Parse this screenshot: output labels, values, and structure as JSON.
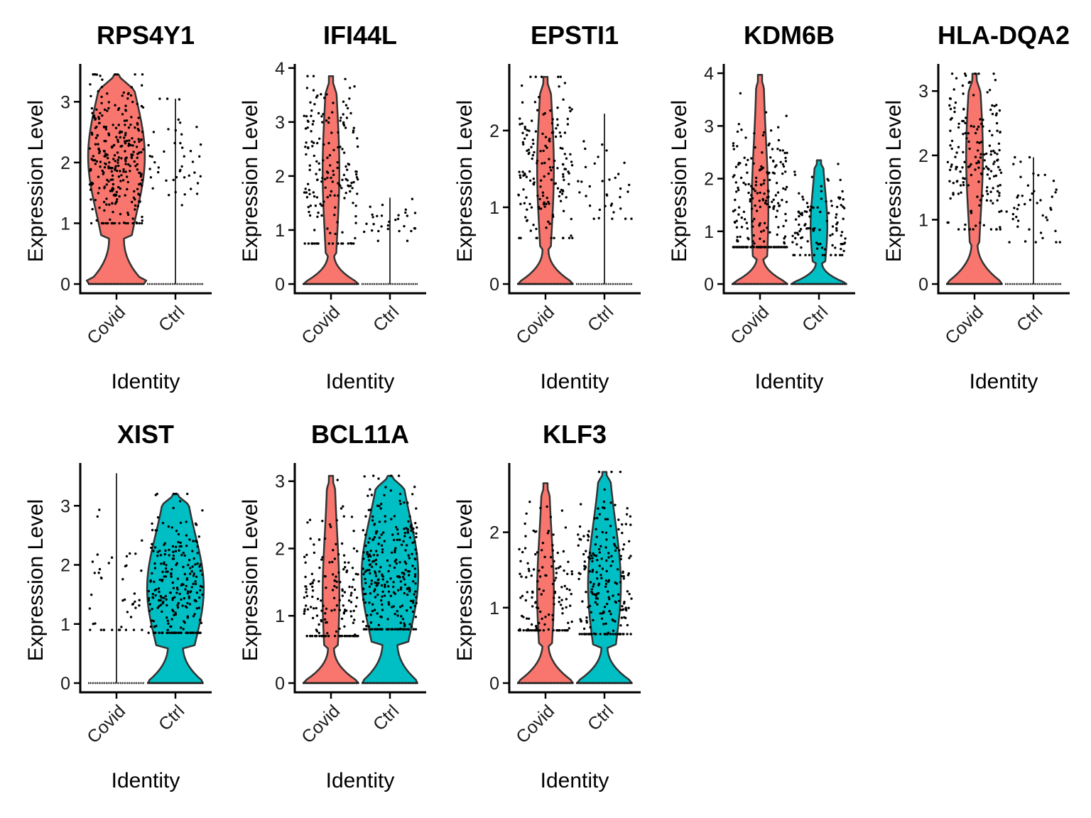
{
  "chart_data": [
    {
      "type": "violin",
      "title": "RPS4Y1",
      "xlabel": "Identity",
      "ylabel": "Expression Level",
      "categories": [
        "Covid",
        "Ctrl"
      ],
      "yticks": [
        0,
        1,
        2,
        3
      ],
      "ylim": [
        -0.15,
        3.6
      ],
      "series": [
        {
          "name": "Covid",
          "color": "#F8766D",
          "max": 3.45,
          "zero_fraction": 0.3,
          "mode": 2.1,
          "nonzero_range": [
            1.0,
            3.45
          ],
          "shape": "wide-upper",
          "points": 300
        },
        {
          "name": "Ctrl",
          "color": "#00BFC4",
          "max": 3.05,
          "zero_fraction": 0.92,
          "mode": 2.2,
          "nonzero_range": [
            1.25,
            3.05
          ],
          "shape": "line",
          "points": 45
        }
      ]
    },
    {
      "type": "violin",
      "title": "IFI44L",
      "xlabel": "Identity",
      "ylabel": "Expression Level",
      "categories": [
        "Covid",
        "Ctrl"
      ],
      "yticks": [
        0,
        1,
        2,
        3,
        4
      ],
      "ylim": [
        -0.2,
        4.05
      ],
      "series": [
        {
          "name": "Covid",
          "color": "#F8766D",
          "max": 3.85,
          "zero_fraction": 0.45,
          "mode": 2.1,
          "nonzero_range": [
            0.75,
            3.85
          ],
          "shape": "narrow-upper",
          "points": 180
        },
        {
          "name": "Ctrl",
          "color": "#00BFC4",
          "max": 1.6,
          "zero_fraction": 0.93,
          "mode": 1.1,
          "nonzero_range": [
            0.8,
            1.6
          ],
          "shape": "line",
          "points": 30
        }
      ]
    },
    {
      "type": "violin",
      "title": "EPSTI1",
      "xlabel": "Identity",
      "ylabel": "Expression Level",
      "categories": [
        "Covid",
        "Ctrl"
      ],
      "yticks": [
        0,
        1,
        2
      ],
      "ylim": [
        -0.15,
        2.85
      ],
      "series": [
        {
          "name": "Covid",
          "color": "#F8766D",
          "max": 2.7,
          "zero_fraction": 0.5,
          "mode": 1.5,
          "nonzero_range": [
            0.6,
            2.7
          ],
          "shape": "narrow-upper",
          "points": 170
        },
        {
          "name": "Ctrl",
          "color": "#00BFC4",
          "max": 2.22,
          "zero_fraction": 0.93,
          "mode": 1.1,
          "nonzero_range": [
            0.85,
            2.22
          ],
          "shape": "line",
          "points": 35
        }
      ]
    },
    {
      "type": "violin",
      "title": "KDM6B",
      "xlabel": "Identity",
      "ylabel": "Expression Level",
      "categories": [
        "Covid",
        "Ctrl"
      ],
      "yticks": [
        0,
        1,
        2,
        3,
        4
      ],
      "ylim": [
        -0.2,
        4.15
      ],
      "series": [
        {
          "name": "Covid",
          "color": "#F8766D",
          "max": 3.97,
          "zero_fraction": 0.45,
          "mode": 1.4,
          "nonzero_range": [
            0.7,
            3.97
          ],
          "shape": "narrow-upper",
          "points": 220
        },
        {
          "name": "Ctrl",
          "color": "#00BFC4",
          "max": 2.35,
          "zero_fraction": 0.55,
          "mode": 1.1,
          "nonzero_range": [
            0.55,
            2.35
          ],
          "shape": "narrow-upper",
          "points": 110
        }
      ]
    },
    {
      "type": "violin",
      "title": "HLA-DQA2",
      "xlabel": "Identity",
      "ylabel": "Expression Level",
      "categories": [
        "Covid",
        "Ctrl"
      ],
      "yticks": [
        0,
        1,
        2,
        3
      ],
      "ylim": [
        -0.15,
        3.4
      ],
      "series": [
        {
          "name": "Covid",
          "color": "#F8766D",
          "max": 3.27,
          "zero_fraction": 0.5,
          "mode": 2.0,
          "nonzero_range": [
            0.85,
            3.27
          ],
          "shape": "narrow-upper",
          "points": 180
        },
        {
          "name": "Ctrl",
          "color": "#00BFC4",
          "max": 1.97,
          "zero_fraction": 0.92,
          "mode": 1.1,
          "nonzero_range": [
            0.65,
            1.97
          ],
          "shape": "line",
          "points": 45
        }
      ]
    },
    {
      "type": "violin",
      "title": "XIST",
      "xlabel": "Identity",
      "ylabel": "Expression Level",
      "categories": [
        "Covid",
        "Ctrl"
      ],
      "yticks": [
        0,
        1,
        2,
        3
      ],
      "ylim": [
        -0.15,
        3.7
      ],
      "series": [
        {
          "name": "Covid",
          "color": "#F8766D",
          "max": 3.55,
          "zero_fraction": 0.93,
          "mode": 1.6,
          "nonzero_range": [
            0.9,
            3.55
          ],
          "shape": "line",
          "points": 45
        },
        {
          "name": "Ctrl",
          "color": "#00BFC4",
          "max": 3.2,
          "zero_fraction": 0.35,
          "mode": 1.6,
          "nonzero_range": [
            0.85,
            3.2
          ],
          "shape": "wide-upper",
          "points": 250
        }
      ]
    },
    {
      "type": "violin",
      "title": "BCL11A",
      "xlabel": "Identity",
      "ylabel": "Expression Level",
      "categories": [
        "Covid",
        "Ctrl"
      ],
      "yticks": [
        0,
        1,
        2,
        3
      ],
      "ylim": [
        -0.15,
        3.25
      ],
      "series": [
        {
          "name": "Covid",
          "color": "#F8766D",
          "max": 3.08,
          "zero_fraction": 0.5,
          "mode": 1.3,
          "nonzero_range": [
            0.7,
            3.08
          ],
          "shape": "narrow-upper",
          "points": 180
        },
        {
          "name": "Ctrl",
          "color": "#00BFC4",
          "max": 3.08,
          "zero_fraction": 0.3,
          "mode": 1.6,
          "nonzero_range": [
            0.8,
            3.08
          ],
          "shape": "wide-upper",
          "points": 300
        }
      ]
    },
    {
      "type": "violin",
      "title": "KLF3",
      "xlabel": "Identity",
      "ylabel": "Expression Level",
      "categories": [
        "Covid",
        "Ctrl"
      ],
      "yticks": [
        0,
        1,
        2
      ],
      "ylim": [
        -0.12,
        2.9
      ],
      "series": [
        {
          "name": "Covid",
          "color": "#F8766D",
          "max": 2.65,
          "zero_fraction": 0.55,
          "mode": 1.2,
          "nonzero_range": [
            0.7,
            2.65
          ],
          "shape": "narrow-upper",
          "points": 140
        },
        {
          "name": "Ctrl",
          "color": "#00BFC4",
          "max": 2.8,
          "zero_fraction": 0.45,
          "mode": 1.3,
          "nonzero_range": [
            0.65,
            2.8
          ],
          "shape": "medium-upper",
          "points": 220
        }
      ]
    }
  ]
}
